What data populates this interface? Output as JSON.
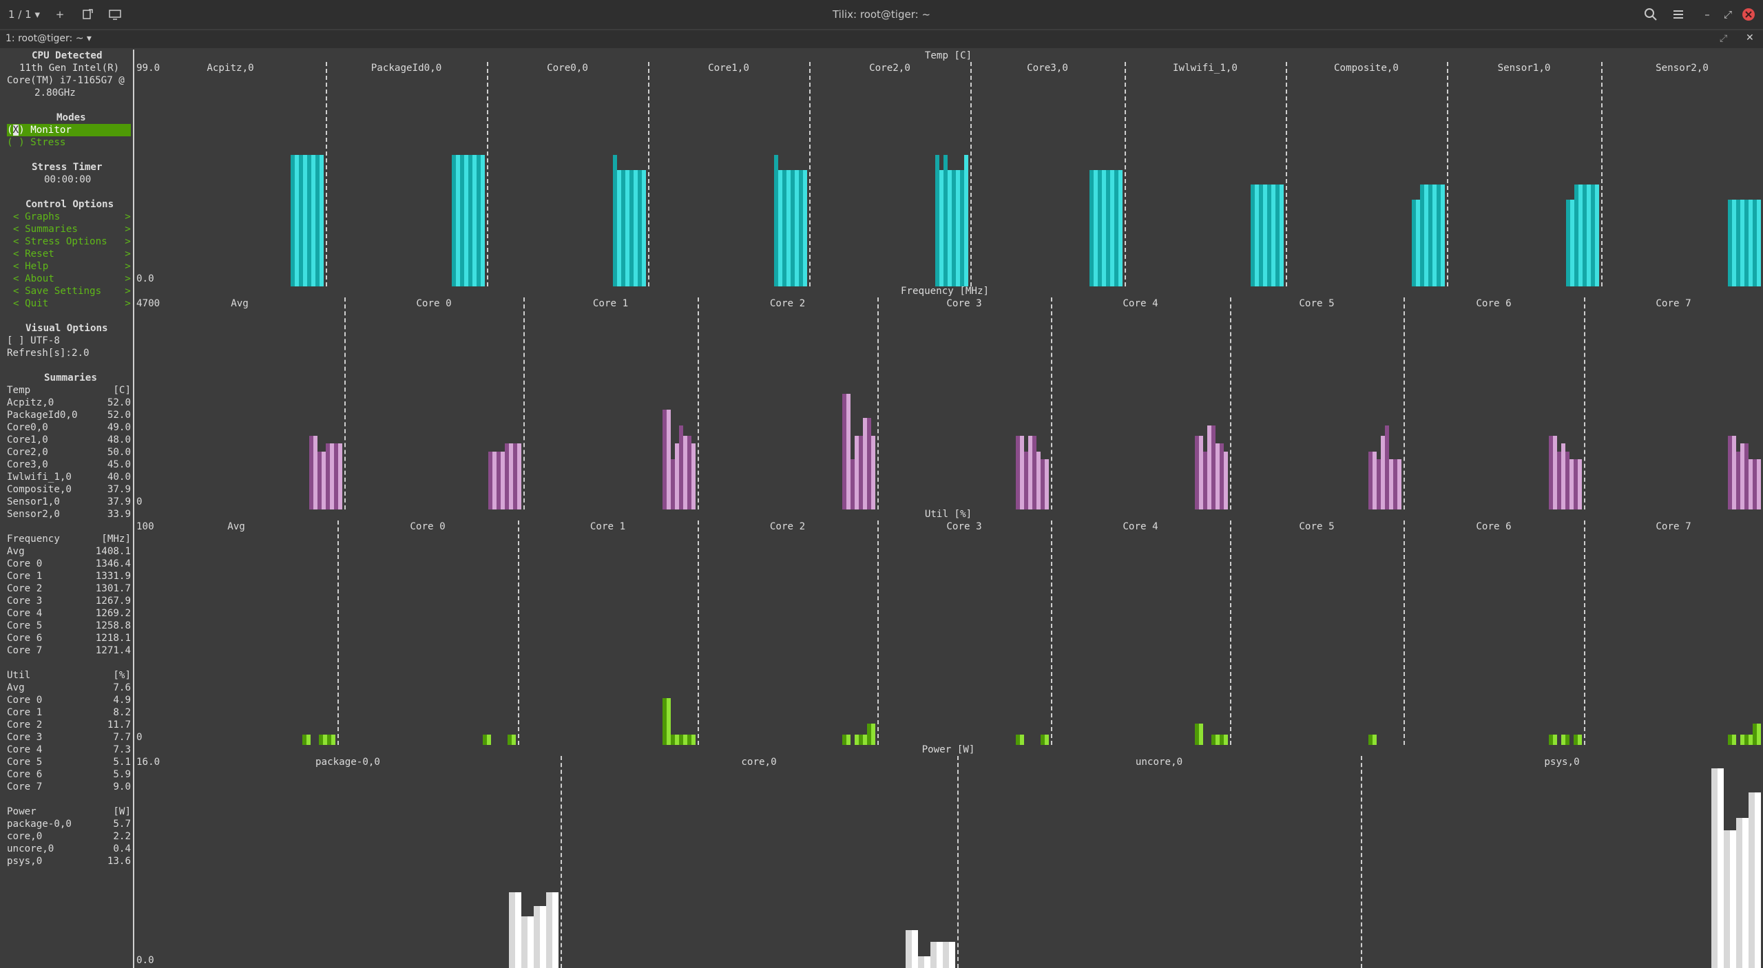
{
  "window": {
    "title": "Tilix: root@tiger: ~",
    "session_label": "1 / 1",
    "tab_label": "1: root@tiger: ~"
  },
  "sidebar": {
    "cpu_heading": "CPU Detected",
    "cpu_line1": "11th Gen Intel(R)",
    "cpu_line2": "Core(TM) i7-1165G7 @",
    "cpu_line3": "2.80GHz",
    "modes_heading": "Modes",
    "mode_monitor_mark": "X",
    "mode_monitor": "Monitor",
    "mode_stress": "( ) Stress",
    "stress_timer_heading": "Stress Timer",
    "stress_timer_value": "00:00:00",
    "control_heading": "Control Options",
    "control_items": [
      "< Graphs           >",
      "< Summaries        >",
      "< Stress Options   >",
      "< Reset            >",
      "< Help             >",
      "< About            >",
      "< Save Settings    >",
      "< Quit             >"
    ],
    "visual_heading": "Visual Options",
    "utf8_option": "[ ] UTF-8",
    "refresh": "Refresh[s]:2.0",
    "summaries_heading": "Summaries"
  },
  "summaries": {
    "temp": {
      "label": "Temp",
      "unit": "[C]",
      "rows": [
        [
          "Acpitz,0",
          "52.0"
        ],
        [
          "PackageId0,0",
          "52.0"
        ],
        [
          "Core0,0",
          "49.0"
        ],
        [
          "Core1,0",
          "48.0"
        ],
        [
          "Core2,0",
          "50.0"
        ],
        [
          "Core3,0",
          "45.0"
        ],
        [
          "Iwlwifi_1,0",
          "40.0"
        ],
        [
          "Composite,0",
          "37.9"
        ],
        [
          "Sensor1,0",
          "37.9"
        ],
        [
          "Sensor2,0",
          "33.9"
        ]
      ]
    },
    "freq": {
      "label": "Frequency",
      "unit": "[MHz]",
      "rows": [
        [
          "Avg",
          "1408.1"
        ],
        [
          "Core 0",
          "1346.4"
        ],
        [
          "Core 1",
          "1331.9"
        ],
        [
          "Core 2",
          "1301.7"
        ],
        [
          "Core 3",
          "1267.9"
        ],
        [
          "Core 4",
          "1269.2"
        ],
        [
          "Core 5",
          "1258.8"
        ],
        [
          "Core 6",
          "1218.1"
        ],
        [
          "Core 7",
          "1271.4"
        ]
      ]
    },
    "util": {
      "label": "Util",
      "unit": "[%]",
      "rows": [
        [
          "Avg",
          "7.6"
        ],
        [
          "Core 0",
          "4.9"
        ],
        [
          "Core 1",
          "8.2"
        ],
        [
          "Core 2",
          "11.7"
        ],
        [
          "Core 3",
          "7.7"
        ],
        [
          "Core 4",
          "7.3"
        ],
        [
          "Core 5",
          "5.1"
        ],
        [
          "Core 6",
          "5.9"
        ],
        [
          "Core 7",
          "9.0"
        ]
      ]
    },
    "power": {
      "label": "Power",
      "unit": "[W]",
      "rows": [
        [
          "package-0,0",
          "5.7"
        ],
        [
          "core,0",
          "2.2"
        ],
        [
          "uncore,0",
          "0.4"
        ],
        [
          "psys,0",
          "13.6"
        ]
      ]
    }
  },
  "graphs": {
    "temp": {
      "title": "Temp [C]",
      "ymax": "99.0",
      "ymin": "0.0",
      "color": "#1ec8c8",
      "panels": [
        {
          "label": "Acpitz,0",
          "bars": [
            0.62,
            0.62,
            0.62,
            0.62,
            0.62,
            0.62,
            0.62,
            0.62
          ]
        },
        {
          "label": "PackageId0,0",
          "bars": [
            0.62,
            0.62,
            0.62,
            0.62,
            0.62,
            0.62,
            0.62,
            0.62
          ]
        },
        {
          "label": "Core0,0",
          "bars": [
            0.62,
            0.55,
            0.55,
            0.55,
            0.55,
            0.55,
            0.55,
            0.55
          ]
        },
        {
          "label": "Core1,0",
          "bars": [
            0.62,
            0.55,
            0.55,
            0.55,
            0.55,
            0.55,
            0.55,
            0.55
          ]
        },
        {
          "label": "Core2,0",
          "bars": [
            0.62,
            0.55,
            0.62,
            0.55,
            0.55,
            0.55,
            0.55,
            0.62
          ]
        },
        {
          "label": "Core3,0",
          "bars": [
            0.55,
            0.55,
            0.55,
            0.55,
            0.55,
            0.55,
            0.55,
            0.55
          ]
        },
        {
          "label": "Iwlwifi_1,0",
          "bars": [
            0.48,
            0.48,
            0.48,
            0.48,
            0.48,
            0.48,
            0.48,
            0.48
          ]
        },
        {
          "label": "Composite,0",
          "bars": [
            0.41,
            0.41,
            0.48,
            0.48,
            0.48,
            0.48,
            0.48,
            0.48
          ]
        },
        {
          "label": "Sensor1,0",
          "bars": [
            0.41,
            0.41,
            0.48,
            0.48,
            0.48,
            0.48,
            0.48,
            0.48
          ]
        },
        {
          "label": "Sensor2,0",
          "bars": [
            0.41,
            0.41,
            0.41,
            0.41,
            0.41,
            0.41,
            0.41,
            0.41
          ]
        }
      ]
    },
    "freq": {
      "title": "Frequency [MHz]",
      "ymax": "4700",
      "ymin": "0",
      "color": "#a66aa6",
      "panels": [
        {
          "label": "Avg",
          "bars": [
            0.37,
            0.37,
            0.29,
            0.29,
            0.33,
            0.33,
            0.33,
            0.33
          ]
        },
        {
          "label": "Core 0",
          "bars": [
            0.29,
            0.29,
            0.29,
            0.29,
            0.33,
            0.33,
            0.33,
            0.33
          ]
        },
        {
          "label": "Core 1",
          "bars": [
            0.5,
            0.5,
            0.25,
            0.33,
            0.42,
            0.37,
            0.37,
            0.33
          ]
        },
        {
          "label": "Core 2",
          "bars": [
            0.58,
            0.58,
            0.25,
            0.37,
            0.37,
            0.46,
            0.46,
            0.37
          ]
        },
        {
          "label": "Core 3",
          "bars": [
            0.37,
            0.37,
            0.29,
            0.37,
            0.37,
            0.29,
            0.25,
            0.25
          ]
        },
        {
          "label": "Core 4",
          "bars": [
            0.37,
            0.37,
            0.29,
            0.42,
            0.42,
            0.33,
            0.33,
            0.29
          ]
        },
        {
          "label": "Core 5",
          "bars": [
            0.29,
            0.29,
            0.25,
            0.37,
            0.42,
            0.25,
            0.25,
            0.25
          ]
        },
        {
          "label": "Core 6",
          "bars": [
            0.37,
            0.37,
            0.29,
            0.33,
            0.29,
            0.25,
            0.25,
            0.25
          ]
        },
        {
          "label": "Core 7",
          "bars": [
            0.37,
            0.37,
            0.29,
            0.33,
            0.33,
            0.25,
            0.25,
            0.25
          ]
        }
      ]
    },
    "util": {
      "title": "Util [%]",
      "ymax": "100",
      "ymin": "0",
      "color": "#4e9a06",
      "panels": [
        {
          "label": "Avg",
          "bars": [
            0.05,
            0.05,
            0,
            0,
            0.05,
            0.05,
            0.05,
            0.05
          ]
        },
        {
          "label": "Core 0",
          "bars": [
            0.05,
            0.05,
            0,
            0,
            0,
            0,
            0.05,
            0.05
          ]
        },
        {
          "label": "Core 1",
          "bars": [
            0.22,
            0.22,
            0.05,
            0.05,
            0.05,
            0.05,
            0.05,
            0.05
          ]
        },
        {
          "label": "Core 2",
          "bars": [
            0.05,
            0.05,
            0,
            0.05,
            0.05,
            0.05,
            0.1,
            0.1
          ]
        },
        {
          "label": "Core 3",
          "bars": [
            0.05,
            0.05,
            0,
            0,
            0,
            0,
            0.05,
            0.05
          ]
        },
        {
          "label": "Core 4",
          "bars": [
            0.1,
            0.1,
            0,
            0,
            0.05,
            0.05,
            0.05,
            0.05
          ]
        },
        {
          "label": "Core 5",
          "bars": [
            0.05,
            0.05,
            0,
            0,
            0,
            0,
            0,
            0
          ]
        },
        {
          "label": "Core 6",
          "bars": [
            0.05,
            0.05,
            0,
            0.05,
            0.05,
            0,
            0.05,
            0.05
          ]
        },
        {
          "label": "Core 7",
          "bars": [
            0.05,
            0.05,
            0,
            0.05,
            0.05,
            0.05,
            0.1,
            0.1
          ]
        }
      ]
    },
    "power": {
      "title": "Power [W]",
      "ymax": "16.0",
      "ymin": "0.0",
      "color": "#e6e6e6",
      "panels": [
        {
          "label": "package-0,0",
          "bars": [
            0.38,
            0.38,
            0.26,
            0.26,
            0.31,
            0.31,
            0.38,
            0.38
          ]
        },
        {
          "label": "core,0",
          "bars": [
            0.19,
            0.19,
            0.06,
            0.06,
            0.13,
            0.13,
            0.13,
            0.13
          ]
        },
        {
          "label": "uncore,0",
          "bars": [
            0,
            0,
            0,
            0,
            0,
            0,
            0,
            0
          ]
        },
        {
          "label": "psys,0",
          "bars": [
            1.0,
            1.0,
            0.69,
            0.69,
            0.75,
            0.75,
            0.88,
            0.88
          ]
        }
      ]
    }
  }
}
